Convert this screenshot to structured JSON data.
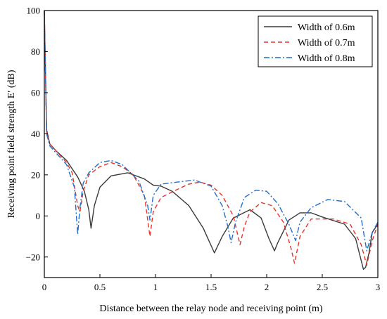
{
  "chart_data": {
    "type": "line",
    "xlabel": "Distance between the relay node and receiving point (m)",
    "ylabel": "Receiving point field strength E′ (dB)",
    "xlim": [
      0,
      3
    ],
    "ylim": [
      -30,
      100
    ],
    "xticks": [
      0,
      0.5,
      1,
      1.5,
      2,
      2.5,
      3
    ],
    "yticks": [
      -20,
      0,
      20,
      40,
      60,
      80,
      100
    ],
    "xtick_labels": [
      "0",
      "0.5",
      "1",
      "1.5",
      "2",
      "2.5",
      "3"
    ],
    "ytick_labels": [
      "−20",
      "0",
      "20",
      "40",
      "60",
      "80",
      "100"
    ],
    "grid": false,
    "legend_position": "top-right",
    "series": [
      {
        "name": "Width of 0.6m",
        "color": "#3a3a3a",
        "dash": "solid",
        "x": [
          0,
          0.02,
          0.05,
          0.1,
          0.2,
          0.3,
          0.36,
          0.4,
          0.42,
          0.45,
          0.5,
          0.6,
          0.75,
          0.9,
          0.98,
          1.05,
          1.15,
          1.3,
          1.43,
          1.53,
          1.6,
          1.7,
          1.85,
          1.95,
          2.02,
          2.07,
          2.1,
          2.2,
          2.3,
          2.4,
          2.5,
          2.7,
          2.8,
          2.87,
          2.89,
          2.92,
          2.95,
          3.0
        ],
        "y": [
          100,
          42,
          35,
          32,
          27,
          19,
          12,
          3,
          -6,
          5,
          14,
          19.5,
          21,
          18,
          15,
          14.5,
          12,
          5,
          -6,
          -18,
          -10,
          -1,
          3,
          -1,
          -11,
          -17,
          -13,
          -2,
          1.5,
          1.5,
          -0.5,
          -4,
          -11,
          -26,
          -25,
          -18,
          -8,
          -4
        ]
      },
      {
        "name": "Width of 0.7m",
        "color": "#e8332a",
        "dash": "6,4",
        "x": [
          0,
          0.02,
          0.05,
          0.1,
          0.2,
          0.25,
          0.3,
          0.32,
          0.35,
          0.4,
          0.5,
          0.6,
          0.7,
          0.8,
          0.9,
          0.95,
          0.98,
          1.05,
          1.2,
          1.3,
          1.4,
          1.5,
          1.6,
          1.7,
          1.76,
          1.8,
          1.85,
          1.95,
          2.05,
          2.15,
          2.22,
          2.25,
          2.3,
          2.4,
          2.6,
          2.75,
          2.85,
          2.9,
          2.95,
          3.0
        ],
        "y": [
          100,
          41,
          35,
          32,
          26,
          21,
          5,
          2,
          12,
          20,
          24,
          26,
          24,
          20,
          10,
          -10,
          2,
          9,
          13,
          15.5,
          16.5,
          15,
          10,
          0,
          -14,
          -5,
          2,
          6.5,
          5,
          -3,
          -16,
          -23,
          -10,
          -1.5,
          -1.5,
          -4,
          -14,
          -24,
          -12,
          -4
        ]
      },
      {
        "name": "Width of 0.8m",
        "color": "#1f6fd0",
        "dash": "8,3,2,3",
        "x": [
          0,
          0.02,
          0.05,
          0.1,
          0.2,
          0.27,
          0.3,
          0.32,
          0.35,
          0.4,
          0.5,
          0.6,
          0.7,
          0.85,
          0.93,
          0.95,
          0.98,
          1.05,
          1.2,
          1.35,
          1.5,
          1.6,
          1.65,
          1.68,
          1.72,
          1.8,
          1.9,
          2.0,
          2.1,
          2.2,
          2.26,
          2.3,
          2.4,
          2.55,
          2.7,
          2.85,
          2.9,
          2.95,
          3.0
        ],
        "y": [
          100,
          40,
          34,
          31,
          25,
          14,
          -9,
          4,
          16,
          21,
          26,
          27,
          25,
          17,
          5,
          -2,
          10,
          15.5,
          16.5,
          17.5,
          14.5,
          5,
          -5,
          -13,
          -3,
          9,
          12.5,
          12,
          6,
          -4,
          -12,
          -3,
          4,
          8,
          7,
          -1,
          -17,
          -8,
          -3
        ]
      }
    ]
  }
}
